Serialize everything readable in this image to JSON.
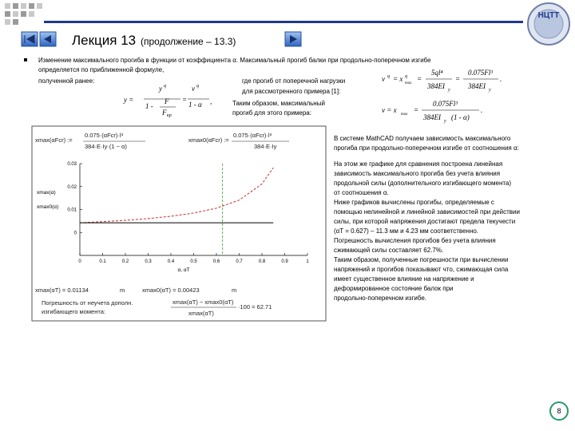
{
  "header": {
    "title": "Лекция 13",
    "subtitle": "(продолжение – 13.3)"
  },
  "logo": {
    "text": "НЦТТ"
  },
  "intro": {
    "lines": [
      "Изменение максимального прогиба в функции от коэффициента α. Максимальный прогиб балки при продольно-поперечном изгибе",
      "определяется по приближенной формуле,",
      "полученной ранее:"
    ]
  },
  "formula1": {
    "parts": [
      "y =",
      "y",
      "q",
      "1 -",
      "F",
      "F",
      "кр",
      "=",
      "v",
      "q",
      "1 - α",
      ","
    ]
  },
  "note1": {
    "lines": [
      "где прогиб от поперечной нагрузки",
      "для рассмотренного примера [1]:"
    ]
  },
  "formula2": {
    "parts": [
      "v",
      "q",
      "= x",
      "q",
      "max",
      "=",
      "5ql⁴",
      "384EI",
      "y",
      "=",
      "0.075Fl³",
      "384EI",
      "y",
      "."
    ]
  },
  "note2": {
    "lines": [
      "Таким образом, максимальный",
      "прогиб для этого примера:"
    ]
  },
  "formula3": {
    "parts": [
      "v = x",
      "max",
      "=",
      "0.075Fl³",
      "384EI",
      "y",
      "(1 - α)",
      "."
    ]
  },
  "mathcad": {
    "def1": [
      "xmax(αFcr) :=",
      "0.075·(αFcr)·l³",
      "384·E·Iy·(1 − α)"
    ],
    "def2": [
      "xmax0(αFcr) :=",
      "0.075·(αFcr)·l³",
      "384·E·Iy"
    ],
    "res1": [
      "xmax(αT) = 0.01134",
      "m"
    ],
    "res2": [
      "xmax0(αT) = 0.00423",
      "m"
    ],
    "error": [
      "Погрешность от неучета дополн.",
      "изгибающего момента:",
      "xmax(αT) − xmax0(αT)",
      "xmax(αT)",
      "·100 = 62.71"
    ]
  },
  "chart_data": {
    "type": "line",
    "x_label": "α, αT",
    "x": [
      0,
      0.1,
      0.2,
      0.3,
      0.4,
      0.5,
      0.6,
      0.7,
      0.8,
      0.85
    ],
    "series": [
      {
        "name": "xmax(α)",
        "color": "#c0302a",
        "dashed": true,
        "values": [
          0.00423,
          0.0047,
          0.00529,
          0.00604,
          0.00705,
          0.00846,
          0.01058,
          0.0141,
          0.02115,
          0.0282
        ]
      },
      {
        "name": "xmax0(α)",
        "color": "#000000",
        "dashed": false,
        "values": [
          0.00423,
          0.00423,
          0.00423,
          0.00423,
          0.00423,
          0.00423,
          0.00423,
          0.00423,
          0.00423,
          0.00423
        ]
      }
    ],
    "vline": {
      "x": 0.627,
      "color": "#2a9a2a"
    },
    "xlim": [
      0,
      1
    ],
    "xticks": [
      0,
      0.1,
      0.2,
      0.3,
      0.4,
      0.5,
      0.6,
      0.7,
      0.8,
      0.9,
      1
    ],
    "ylim": [
      -0.01,
      0.03
    ],
    "yticks": [
      0,
      0.01,
      0.02,
      0.03
    ]
  },
  "right": {
    "p1": [
      "В системе MathCAD получаем зависимость максимального",
      "прогиба при продольно-поперечном изгибе от соотношения α:"
    ],
    "p2": [
      "На этом же графике для сравнения построена линейная",
      "зависимость максимального прогиба без учета влияния",
      "продольной силы (дополнительного изгибающего момента)",
      "от соотношения α.",
      "Ниже графиков вычислены прогибы, определяемые с",
      "помощью нелинейной и линейной зависимостей при действии",
      "силы, при которой напряжения достигают предела текучести",
      "(αT = 0.627) – 11.3 мм и 4.23 мм соответственно.",
      "Погрешность вычисления прогибов без учета влияния",
      "сжимающей силы составляет 62.7%.",
      "Таким образом, полученные погрешности при вычислении",
      "напряжений и прогибов показывают что, сжимающая сила",
      "имеет существенное влияние на напряжение и",
      "деформированное состояние балок при",
      "продольно-поперечном изгибе."
    ]
  },
  "page_number": "8"
}
